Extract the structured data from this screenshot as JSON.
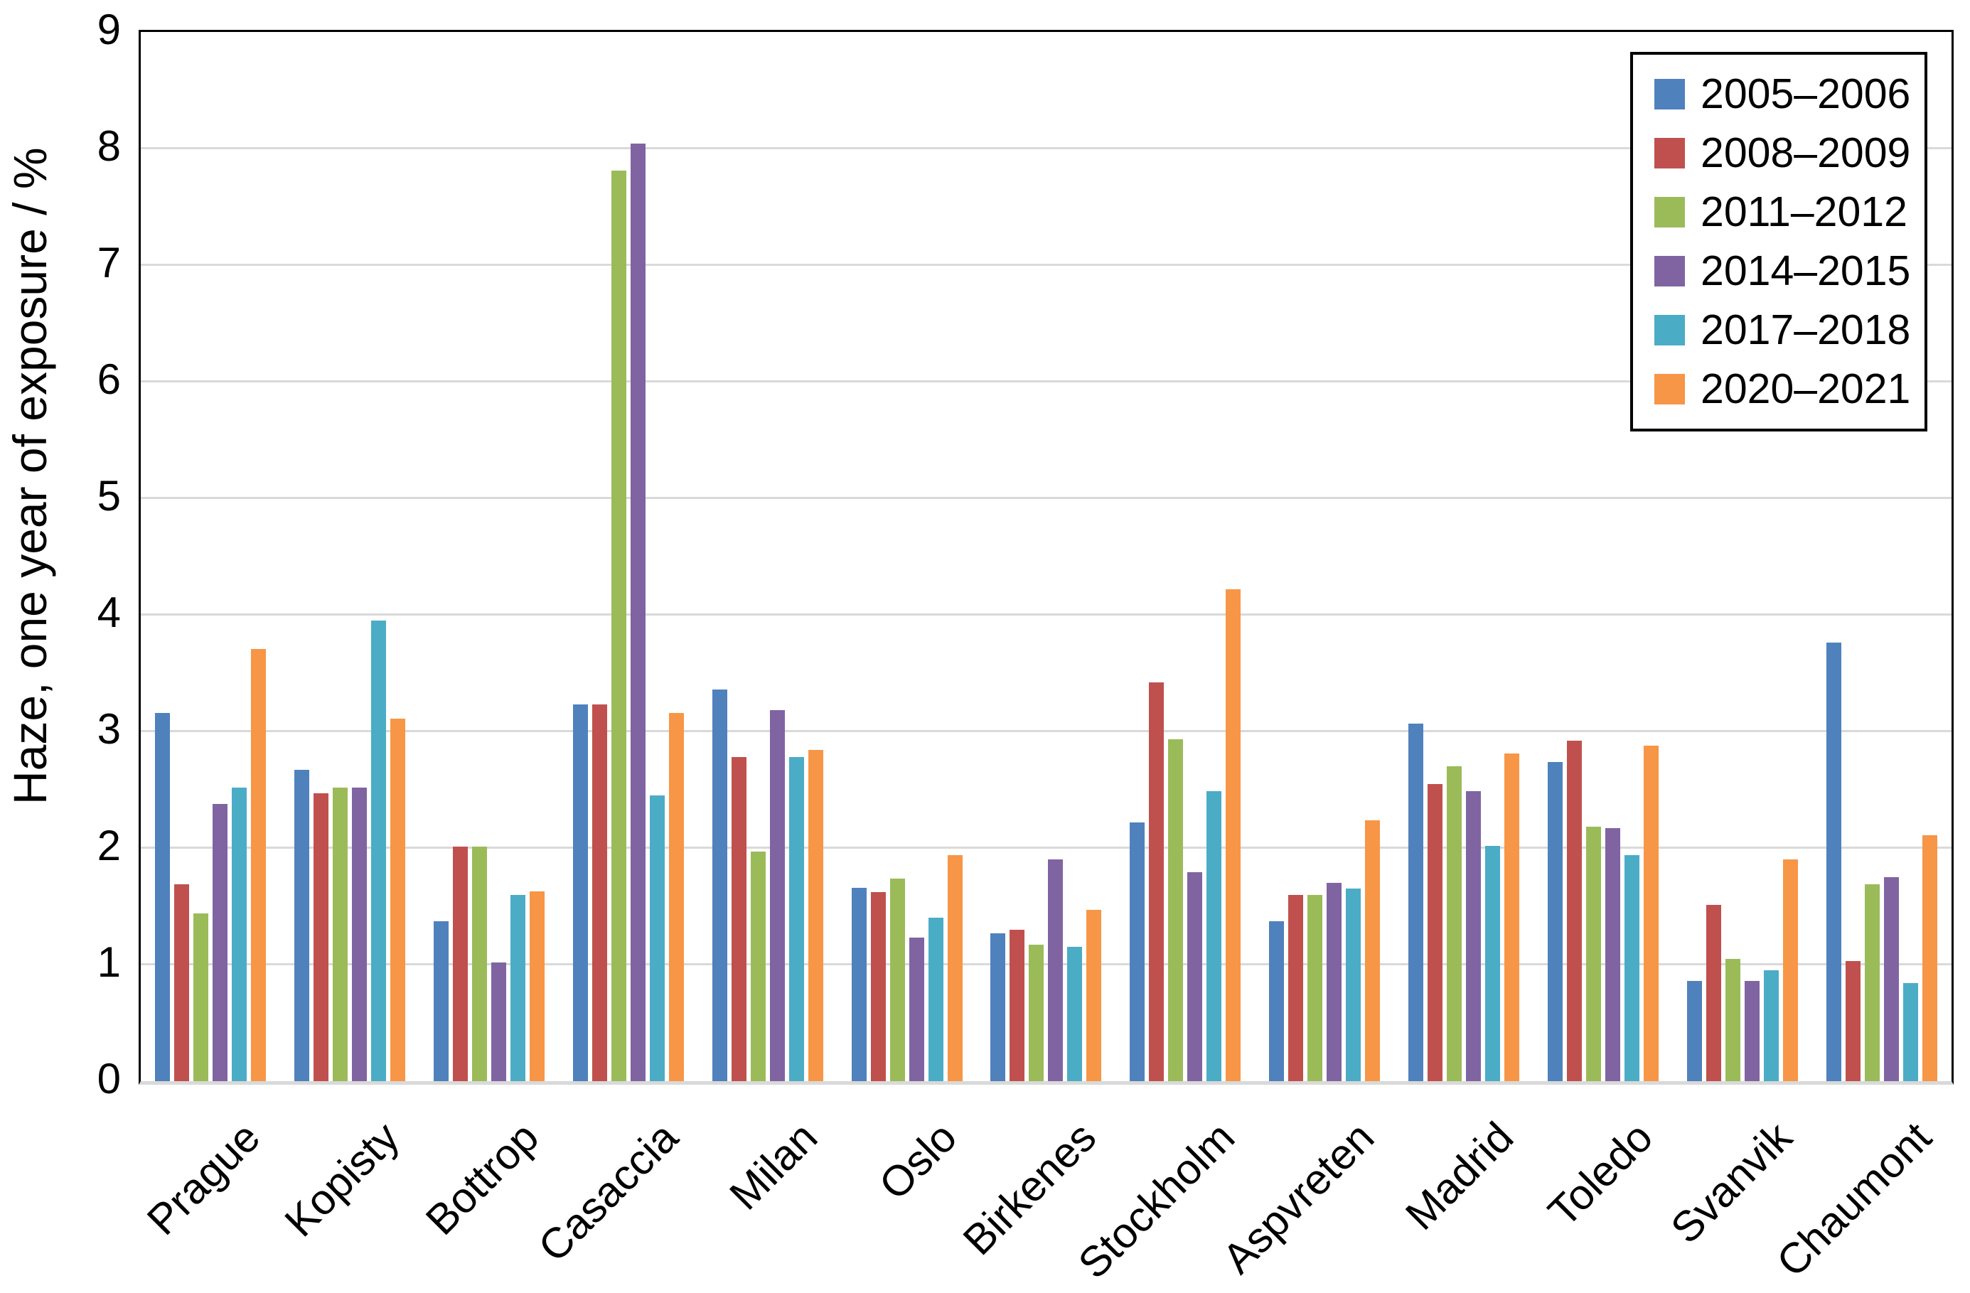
{
  "chart_data": {
    "type": "bar",
    "title": "",
    "ylabel": "Haze, one year of exposure / %",
    "xlabel": "",
    "ylim": [
      0,
      9
    ],
    "yticks": [
      0,
      1,
      2,
      3,
      4,
      5,
      6,
      7,
      8,
      9
    ],
    "grid": true,
    "legend_position": "top-right-inside",
    "gridline_color": "#d9d9d9",
    "categories": [
      "Prague",
      "Kopisty",
      "Bottrop",
      "Casaccia",
      "Milan",
      "Oslo",
      "Birkenes",
      "Stockholm",
      "Aspvreten",
      "Madrid",
      "Toledo",
      "Svanvik",
      "Chaumont"
    ],
    "series": [
      {
        "name": "2005–2006",
        "color": "#4f81bd",
        "values": [
          3.16,
          2.67,
          1.37,
          3.23,
          3.36,
          1.66,
          1.27,
          2.22,
          1.37,
          3.07,
          2.74,
          0.86,
          3.76
        ]
      },
      {
        "name": "2008–2009",
        "color": "#c0504d",
        "values": [
          1.69,
          2.47,
          2.01,
          3.23,
          2.78,
          1.62,
          1.3,
          3.42,
          1.6,
          2.55,
          2.92,
          1.51,
          1.03
        ]
      },
      {
        "name": "2011–2012",
        "color": "#9bbb59",
        "values": [
          1.44,
          2.52,
          2.01,
          7.81,
          1.97,
          1.74,
          1.17,
          2.93,
          1.6,
          2.7,
          2.18,
          1.05,
          1.69
        ]
      },
      {
        "name": "2014–2015",
        "color": "#8064a2",
        "values": [
          2.38,
          2.52,
          1.02,
          8.04,
          3.18,
          1.23,
          1.9,
          1.79,
          1.7,
          2.49,
          2.17,
          0.86,
          1.75
        ]
      },
      {
        "name": "2017–2018",
        "color": "#4bacc6",
        "values": [
          2.52,
          3.95,
          1.6,
          2.45,
          2.78,
          1.4,
          1.15,
          2.49,
          1.65,
          2.02,
          1.94,
          0.95,
          0.84
        ]
      },
      {
        "name": "2020–2021",
        "color": "#f79646",
        "values": [
          3.71,
          3.11,
          1.63,
          3.16,
          2.84,
          1.94,
          1.47,
          4.22,
          2.24,
          2.81,
          2.88,
          1.9,
          2.11
        ]
      }
    ]
  }
}
